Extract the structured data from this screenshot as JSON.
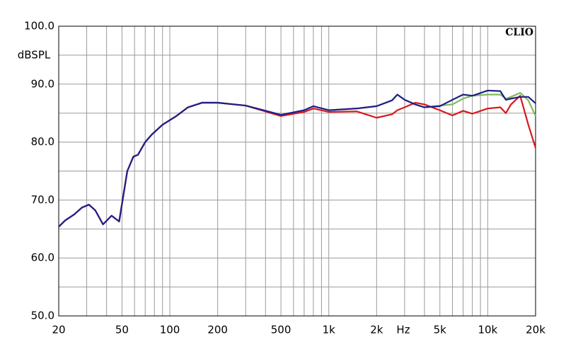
{
  "chart_data": {
    "type": "line",
    "annotation": "CLIO",
    "x_label": "Hz",
    "y_label": "dBSPL",
    "x_scale": "log",
    "grid": true,
    "x": [
      20,
      22,
      25,
      28,
      31,
      34,
      38,
      43,
      48,
      54,
      59,
      63,
      70,
      77,
      90,
      110,
      130,
      160,
      200,
      300,
      500,
      700,
      800,
      1000,
      1500,
      2000,
      2500,
      2700,
      3000,
      3500,
      4000,
      5000,
      6000,
      7000,
      8000,
      10000,
      12000,
      13000,
      14000,
      16000,
      18000,
      20000
    ],
    "series": [
      {
        "color": "#7fba5c",
        "values": [
          65.4,
          66.5,
          67.5,
          68.7,
          69.2,
          68.2,
          65.8,
          67.3,
          66.3,
          75,
          77.5,
          77.8,
          80,
          81.3,
          83,
          84.5,
          86,
          86.8,
          86.8,
          86.3,
          84.7,
          85.5,
          86.2,
          85.5,
          85.8,
          86.2,
          87.2,
          88.2,
          87.3,
          86.5,
          86,
          86.3,
          86.5,
          87.5,
          88,
          88.2,
          88.2,
          87.5,
          87.8,
          88.5,
          87.2,
          84.5
        ]
      },
      {
        "color": "#d7191c",
        "values": [
          65.4,
          66.5,
          67.5,
          68.7,
          69.2,
          68.2,
          65.8,
          67.3,
          66.3,
          75,
          77.5,
          77.8,
          80,
          81.3,
          83,
          84.5,
          86,
          86.8,
          86.8,
          86.3,
          84.5,
          85.2,
          85.8,
          85.2,
          85.3,
          84.2,
          84.8,
          85.5,
          86,
          86.8,
          86.5,
          85.5,
          84.6,
          85.4,
          84.9,
          85.8,
          86,
          85,
          86.5,
          88,
          83,
          79
        ]
      },
      {
        "color": "#1f1f8a",
        "values": [
          65.4,
          66.5,
          67.5,
          68.7,
          69.2,
          68.2,
          65.8,
          67.3,
          66.3,
          75,
          77.5,
          77.8,
          80,
          81.3,
          83,
          84.5,
          86,
          86.8,
          86.8,
          86.3,
          84.7,
          85.5,
          86.2,
          85.5,
          85.8,
          86.2,
          87.2,
          88.2,
          87.3,
          86.5,
          86,
          86.2,
          87.3,
          88.2,
          88,
          88.9,
          88.8,
          87.3,
          87.5,
          87.8,
          87.8,
          86.7
        ]
      }
    ],
    "xlim": [
      20,
      20000
    ],
    "xticks": [
      20,
      50,
      100,
      200,
      500,
      {
        "value": 1000,
        "label": "1k"
      },
      {
        "value": 2000,
        "label": "2k"
      },
      {
        "value": 5000,
        "label": "5k"
      },
      {
        "value": 10000,
        "label": "10k"
      },
      {
        "value": 20000,
        "label": "20k"
      }
    ],
    "x_minor_ticks": [
      30,
      40,
      60,
      70,
      80,
      90,
      300,
      400,
      600,
      700,
      800,
      900,
      3000,
      4000,
      6000,
      7000,
      8000,
      9000
    ],
    "ylim": [
      50,
      100
    ],
    "yticks": [
      {
        "value": 50,
        "label": "50.0"
      },
      {
        "value": 60,
        "label": "60.0"
      },
      {
        "value": 70,
        "label": "70.0"
      },
      {
        "value": 80,
        "label": "80.0"
      },
      {
        "value": 90,
        "label": "90.0"
      },
      {
        "value": 100,
        "label": "100.0"
      }
    ],
    "y_minor_ticks": [
      55,
      65,
      75,
      85,
      95
    ]
  }
}
